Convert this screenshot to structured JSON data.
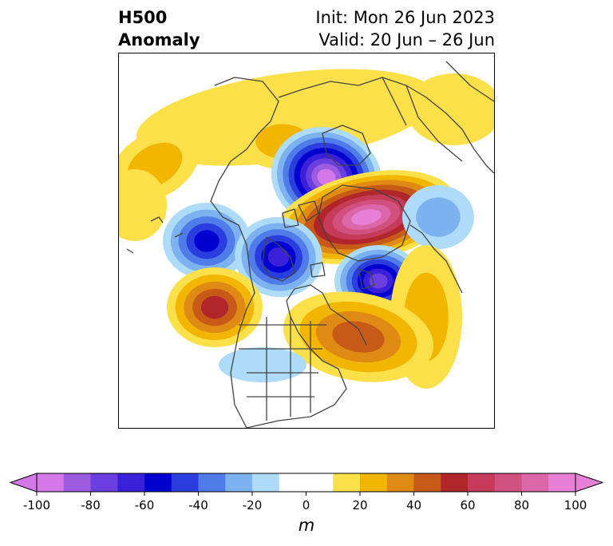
{
  "title": {
    "left_line1": "H500",
    "left_line2": "Anomaly",
    "right_line1": "Init: Mon 26 Jun 2023",
    "right_line2": "Valid: 20 Jun – 26 Jun"
  },
  "colorbar": {
    "ticks": [
      "-100",
      "-80",
      "-60",
      "-40",
      "-20",
      "0",
      "20",
      "40",
      "60",
      "80",
      "100"
    ],
    "unit": "m",
    "colors": [
      "#d478e8",
      "#9d5be0",
      "#6b3ee0",
      "#3a20d8",
      "#0000d0",
      "#2a3ee0",
      "#4f7ce8",
      "#7bb2ef",
      "#aedbf8",
      "#ffffff",
      "#ffffff",
      "#fce04a",
      "#f2b500",
      "#de8a14",
      "#c85a18",
      "#b0262a",
      "#c63a5a",
      "#d0507e",
      "#dc66aa",
      "#e880d8"
    ]
  },
  "anomalies": {
    "positive_colors": [
      "#fce04a",
      "#f2b500",
      "#de8a14",
      "#c85a18",
      "#b0262a",
      "#c63a5a",
      "#d0507e",
      "#dc66aa",
      "#e880d8"
    ],
    "negative_colors": [
      "#aedbf8",
      "#7bb2ef",
      "#4f7ce8",
      "#2a3ee0",
      "#0000d0",
      "#3a20d8",
      "#6b3ee0",
      "#9d5be0",
      "#d478e8"
    ]
  }
}
